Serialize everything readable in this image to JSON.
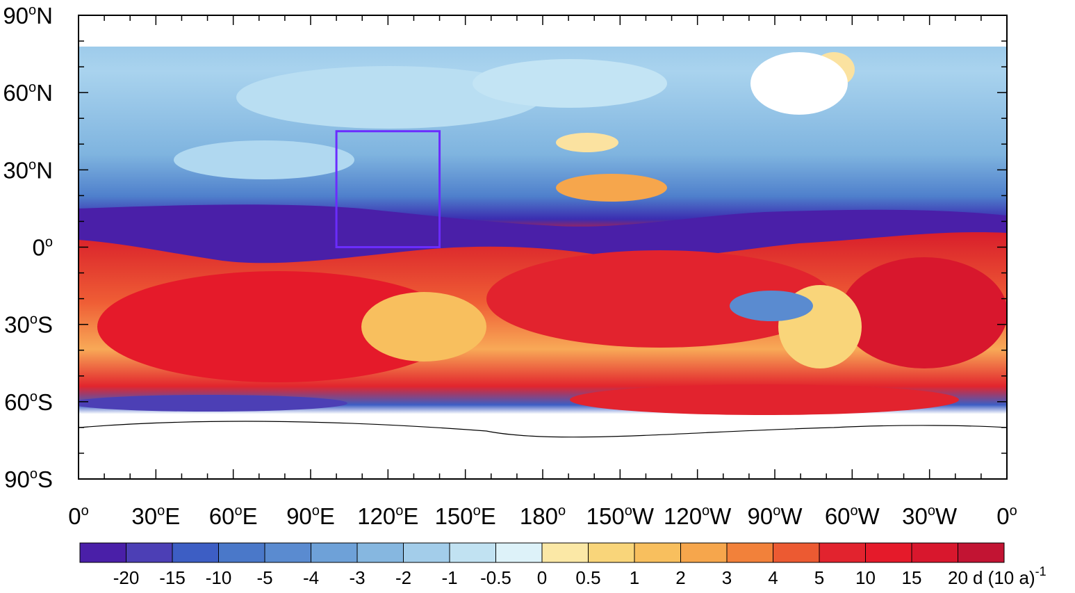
{
  "map": {
    "lat_labels": [
      {
        "deg": "90",
        "sup": "o",
        "hem": "N",
        "lat": 90
      },
      {
        "deg": "60",
        "sup": "o",
        "hem": "N",
        "lat": 60
      },
      {
        "deg": "30",
        "sup": "o",
        "hem": "N",
        "lat": 30
      },
      {
        "deg": "0",
        "sup": "o",
        "hem": "",
        "lat": 0
      },
      {
        "deg": "30",
        "sup": "o",
        "hem": "S",
        "lat": -30
      },
      {
        "deg": "60",
        "sup": "o",
        "hem": "S",
        "lat": -60
      },
      {
        "deg": "90",
        "sup": "o",
        "hem": "S",
        "lat": -90
      }
    ],
    "lon_labels": [
      {
        "deg": "0",
        "sup": "o",
        "hem": "",
        "lon": 0
      },
      {
        "deg": "30",
        "sup": "o",
        "hem": "E",
        "lon": 30
      },
      {
        "deg": "60",
        "sup": "o",
        "hem": "E",
        "lon": 60
      },
      {
        "deg": "90",
        "sup": "o",
        "hem": "E",
        "lon": 90
      },
      {
        "deg": "120",
        "sup": "o",
        "hem": "E",
        "lon": 120
      },
      {
        "deg": "150",
        "sup": "o",
        "hem": "E",
        "lon": 150
      },
      {
        "deg": "180",
        "sup": "o",
        "hem": "",
        "lon": 180
      },
      {
        "deg": "150",
        "sup": "o",
        "hem": "W",
        "lon": 210
      },
      {
        "deg": "120",
        "sup": "o",
        "hem": "W",
        "lon": 240
      },
      {
        "deg": "90",
        "sup": "o",
        "hem": "W",
        "lon": 270
      },
      {
        "deg": "60",
        "sup": "o",
        "hem": "W",
        "lon": 300
      },
      {
        "deg": "30",
        "sup": "o",
        "hem": "W",
        "lon": 330
      },
      {
        "deg": "0",
        "sup": "o",
        "hem": "",
        "lon": 360
      }
    ],
    "box_region": {
      "lon_min": 100,
      "lon_max": 140,
      "lat_min": 0,
      "lat_max": 45,
      "color": "#6b2cff"
    },
    "colors": {
      "bluest": "#4a1fa8",
      "neutral_blue": "#cbeaf5",
      "neutral_warm": "#fbe6a0",
      "warmest": "#d0102a",
      "missing": "#ffffff"
    }
  },
  "colorbar": {
    "labels": [
      "-20",
      "-15",
      "-10",
      "-5",
      "-4",
      "-3",
      "-2",
      "-1",
      "-0.5",
      "0",
      "0.5",
      "1",
      "2",
      "3",
      "4",
      "5",
      "10",
      "15",
      "20"
    ],
    "unit": "d (10 a)",
    "unit_sup": "-1",
    "colors": [
      "#4a1fa8",
      "#4c3fb5",
      "#3d5ec4",
      "#4a78c9",
      "#5a8bd0",
      "#6ea1d8",
      "#86b7e0",
      "#a3cdea",
      "#c1e2f2",
      "#ddf2f9",
      "#fbe8a6",
      "#f9d57a",
      "#f8bf5e",
      "#f6a64c",
      "#f2813a",
      "#ec5a32",
      "#e2232e",
      "#e51a2a",
      "#d8172d",
      "#c21433"
    ]
  }
}
